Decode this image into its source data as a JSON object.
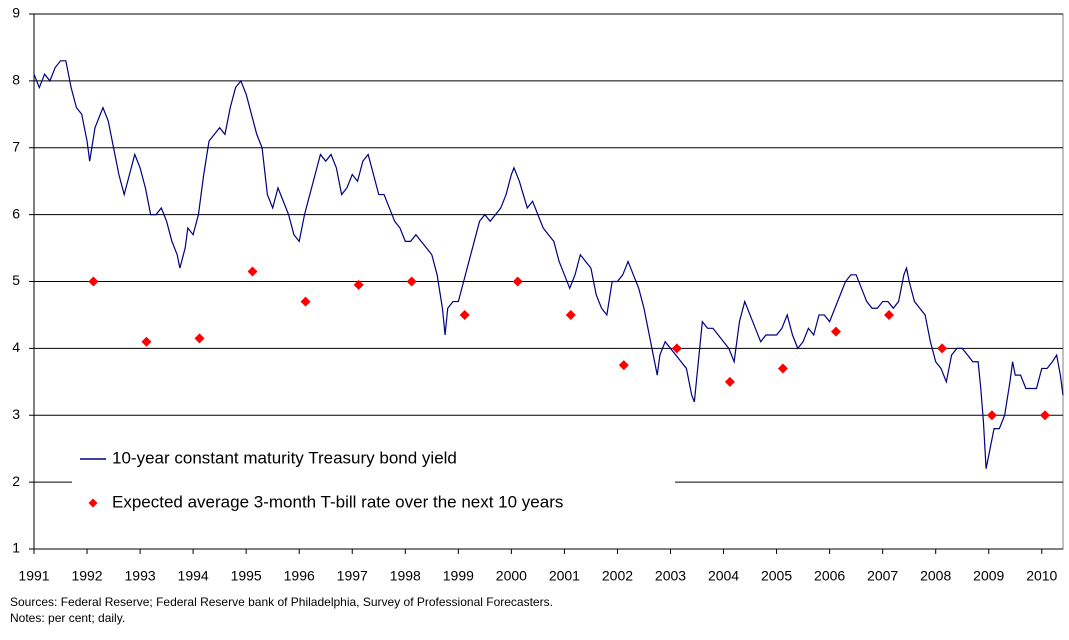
{
  "chart_data": {
    "type": "line",
    "xlim": [
      1991,
      2010.4
    ],
    "xticks": [
      1991,
      1992,
      1993,
      1994,
      1995,
      1996,
      1997,
      1998,
      1999,
      2000,
      2001,
      2002,
      2003,
      2004,
      2005,
      2006,
      2007,
      2008,
      2009,
      2010
    ],
    "ylim": [
      1,
      9
    ],
    "yticks": [
      1,
      2,
      3,
      4,
      5,
      6,
      7,
      8,
      9
    ],
    "grid": true,
    "legend": "lower left",
    "series": [
      {
        "name": "10-year constant maturity Treasury bond yield",
        "color": "#000080",
        "x": [
          1991.0,
          1991.1,
          1991.2,
          1991.3,
          1991.4,
          1991.5,
          1991.6,
          1991.7,
          1991.8,
          1991.9,
          1992.0,
          1992.05,
          1992.15,
          1992.3,
          1992.4,
          1992.5,
          1992.6,
          1992.7,
          1992.8,
          1992.9,
          1993.0,
          1993.1,
          1993.2,
          1993.3,
          1993.4,
          1993.5,
          1993.6,
          1993.7,
          1993.75,
          1993.85,
          1993.9,
          1994.0,
          1994.1,
          1994.2,
          1994.3,
          1994.4,
          1994.5,
          1994.6,
          1994.7,
          1994.8,
          1994.9,
          1995.0,
          1995.1,
          1995.2,
          1995.3,
          1995.4,
          1995.5,
          1995.6,
          1995.7,
          1995.8,
          1995.9,
          1996.0,
          1996.1,
          1996.2,
          1996.3,
          1996.4,
          1996.5,
          1996.6,
          1996.7,
          1996.8,
          1996.9,
          1997.0,
          1997.1,
          1997.2,
          1997.3,
          1997.4,
          1997.5,
          1997.6,
          1997.7,
          1997.8,
          1997.9,
          1998.0,
          1998.1,
          1998.2,
          1998.3,
          1998.4,
          1998.5,
          1998.6,
          1998.7,
          1998.75,
          1998.8,
          1998.9,
          1999.0,
          1999.1,
          1999.2,
          1999.3,
          1999.4,
          1999.5,
          1999.6,
          1999.7,
          1999.8,
          1999.9,
          2000.0,
          2000.05,
          2000.15,
          2000.3,
          2000.4,
          2000.5,
          2000.6,
          2000.7,
          2000.8,
          2000.9,
          2001.0,
          2001.1,
          2001.2,
          2001.3,
          2001.4,
          2001.5,
          2001.6,
          2001.7,
          2001.8,
          2001.9,
          2002.0,
          2002.1,
          2002.2,
          2002.3,
          2002.4,
          2002.5,
          2002.6,
          2002.7,
          2002.75,
          2002.8,
          2002.9,
          2003.0,
          2003.1,
          2003.2,
          2003.3,
          2003.4,
          2003.45,
          2003.55,
          2003.6,
          2003.7,
          2003.8,
          2003.9,
          2004.0,
          2004.1,
          2004.2,
          2004.3,
          2004.4,
          2004.5,
          2004.6,
          2004.7,
          2004.8,
          2004.9,
          2005.0,
          2005.1,
          2005.2,
          2005.3,
          2005.4,
          2005.5,
          2005.6,
          2005.7,
          2005.8,
          2005.9,
          2006.0,
          2006.1,
          2006.2,
          2006.3,
          2006.4,
          2006.5,
          2006.6,
          2006.7,
          2006.8,
          2006.9,
          2007.0,
          2007.1,
          2007.2,
          2007.3,
          2007.4,
          2007.45,
          2007.5,
          2007.6,
          2007.7,
          2007.8,
          2007.9,
          2008.0,
          2008.1,
          2008.2,
          2008.3,
          2008.4,
          2008.5,
          2008.6,
          2008.7,
          2008.8,
          2008.85,
          2008.9,
          2008.95,
          2009.0,
          2009.1,
          2009.2,
          2009.3,
          2009.4,
          2009.45,
          2009.5,
          2009.6,
          2009.7,
          2009.8,
          2009.9,
          2010.0,
          2010.1,
          2010.2,
          2010.28,
          2010.35,
          2010.4
        ],
        "values": [
          8.1,
          7.9,
          8.1,
          8.0,
          8.2,
          8.3,
          8.3,
          7.9,
          7.6,
          7.5,
          7.1,
          6.8,
          7.3,
          7.6,
          7.4,
          7.0,
          6.6,
          6.3,
          6.6,
          6.9,
          6.7,
          6.4,
          6.0,
          6.0,
          6.1,
          5.9,
          5.6,
          5.4,
          5.2,
          5.5,
          5.8,
          5.7,
          6.0,
          6.6,
          7.1,
          7.2,
          7.3,
          7.2,
          7.6,
          7.9,
          8.0,
          7.8,
          7.5,
          7.2,
          7.0,
          6.3,
          6.1,
          6.4,
          6.2,
          6.0,
          5.7,
          5.6,
          6.0,
          6.3,
          6.6,
          6.9,
          6.8,
          6.9,
          6.7,
          6.3,
          6.4,
          6.6,
          6.5,
          6.8,
          6.9,
          6.6,
          6.3,
          6.3,
          6.1,
          5.9,
          5.8,
          5.6,
          5.6,
          5.7,
          5.6,
          5.5,
          5.4,
          5.1,
          4.6,
          4.2,
          4.6,
          4.7,
          4.7,
          5.0,
          5.3,
          5.6,
          5.9,
          6.0,
          5.9,
          6.0,
          6.1,
          6.3,
          6.6,
          6.7,
          6.5,
          6.1,
          6.2,
          6.0,
          5.8,
          5.7,
          5.6,
          5.3,
          5.1,
          4.9,
          5.1,
          5.4,
          5.3,
          5.2,
          4.8,
          4.6,
          4.5,
          5.0,
          5.0,
          5.1,
          5.3,
          5.1,
          4.9,
          4.6,
          4.2,
          3.8,
          3.6,
          3.9,
          4.1,
          4.0,
          3.9,
          3.8,
          3.7,
          3.3,
          3.2,
          4.0,
          4.4,
          4.3,
          4.3,
          4.2,
          4.1,
          4.0,
          3.8,
          4.4,
          4.7,
          4.5,
          4.3,
          4.1,
          4.2,
          4.2,
          4.2,
          4.3,
          4.5,
          4.2,
          4.0,
          4.1,
          4.3,
          4.2,
          4.5,
          4.5,
          4.4,
          4.6,
          4.8,
          5.0,
          5.1,
          5.1,
          4.9,
          4.7,
          4.6,
          4.6,
          4.7,
          4.7,
          4.6,
          4.7,
          5.1,
          5.2,
          5.0,
          4.7,
          4.6,
          4.5,
          4.1,
          3.8,
          3.7,
          3.5,
          3.9,
          4.0,
          4.0,
          3.9,
          3.8,
          3.8,
          3.4,
          2.9,
          2.2,
          2.4,
          2.8,
          2.8,
          3.0,
          3.5,
          3.8,
          3.6,
          3.6,
          3.4,
          3.4,
          3.4,
          3.7,
          3.7,
          3.8,
          3.9,
          3.6,
          3.3
        ]
      },
      {
        "name": "Expected average 3-month T-bill rate over the next 10 years",
        "color": "#ff0000",
        "marker": "diamond",
        "x": [
          1992.12,
          1993.12,
          1994.12,
          1995.12,
          1996.12,
          1997.12,
          1998.12,
          1999.12,
          2000.12,
          2001.12,
          2002.12,
          2003.12,
          2004.12,
          2005.12,
          2006.12,
          2007.12,
          2008.12,
          2009.06,
          2010.06
        ],
        "values": [
          5.0,
          4.1,
          4.15,
          5.15,
          4.7,
          4.95,
          5.0,
          4.5,
          5.0,
          4.5,
          3.75,
          4.0,
          3.5,
          3.7,
          4.25,
          4.5,
          4.0,
          3.0,
          3.0
        ]
      }
    ],
    "footnotes": [
      "Sources: Federal Reserve; Federal Reserve bank of Philadelphia, Survey of Professional Forecasters.",
      "Notes: per cent; daily."
    ]
  }
}
